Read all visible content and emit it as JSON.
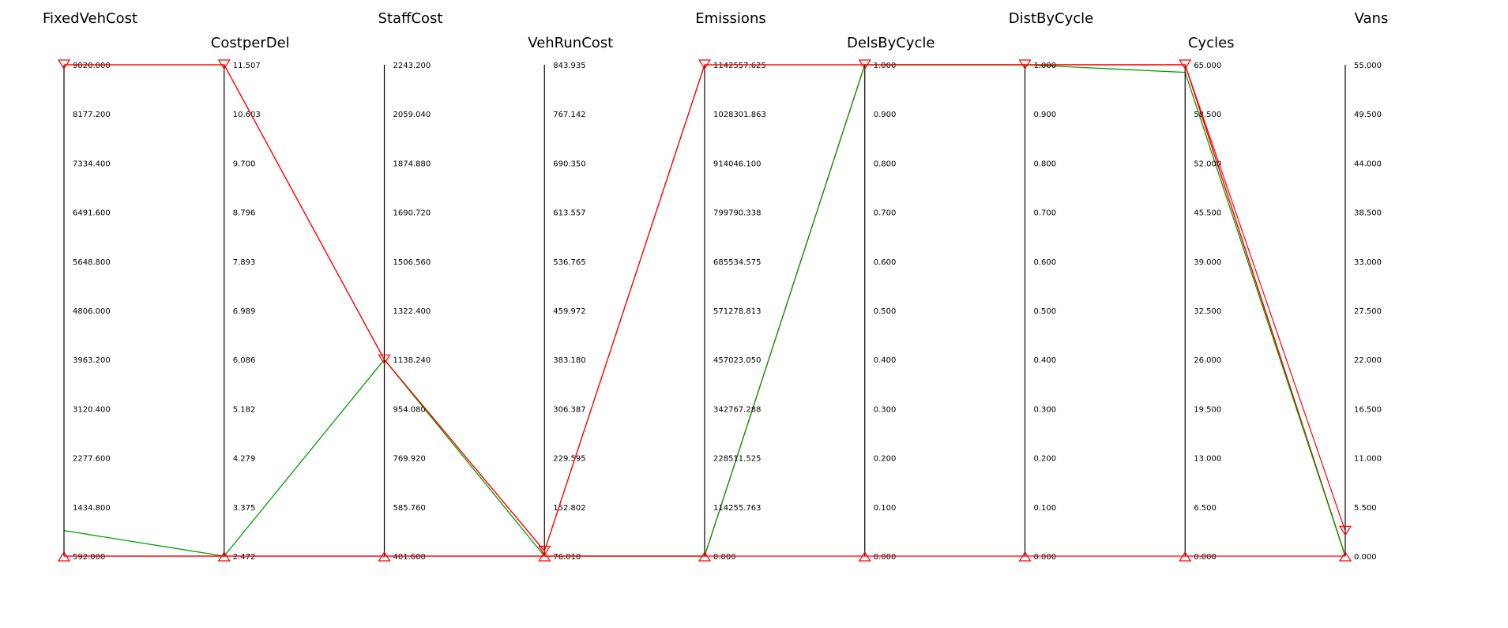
{
  "chart_data": {
    "type": "parallel-coordinates",
    "axes": [
      {
        "name": "FixedVehCost",
        "min": 592.0,
        "max": 9020.0,
        "ticks": [
          "592.000",
          "1434.800",
          "2277.600",
          "3120.400",
          "3963.200",
          "4806.000",
          "5648.800",
          "6491.600",
          "7334.400",
          "8177.200",
          "9020.000"
        ]
      },
      {
        "name": "CostperDel",
        "min": 2.472,
        "max": 11.507,
        "ticks": [
          "2.472",
          "3.375",
          "4.279",
          "5.182",
          "6.086",
          "6.989",
          "7.893",
          "8.796",
          "9.700",
          "10.603",
          "11.507"
        ]
      },
      {
        "name": "StaffCost",
        "min": 401.6,
        "max": 2243.2,
        "ticks": [
          "401.600",
          "585.760",
          "769.920",
          "954.080",
          "1138.240",
          "1322.400",
          "1506.560",
          "1690.720",
          "1874.880",
          "2059.040",
          "2243.200"
        ]
      },
      {
        "name": "VehRunCost",
        "min": 76.01,
        "max": 843.935,
        "ticks": [
          "76.010",
          "152.802",
          "229.595",
          "306.387",
          "383.180",
          "459.972",
          "536.765",
          "613.557",
          "690.350",
          "767.142",
          "843.935"
        ]
      },
      {
        "name": "Emissions",
        "min": 0.0,
        "max": 1142557.625,
        "ticks": [
          "0.000",
          "114255.763",
          "228511.525",
          "342767.288",
          "457023.050",
          "571278.813",
          "685534.575",
          "799790.338",
          "914046.100",
          "1028301.863",
          "1142557.625"
        ]
      },
      {
        "name": "DelsByCycle",
        "min": 0.0,
        "max": 1.0,
        "ticks": [
          "0.000",
          "0.100",
          "0.200",
          "0.300",
          "0.400",
          "0.500",
          "0.600",
          "0.700",
          "0.800",
          "0.900",
          "1.000"
        ]
      },
      {
        "name": "DistByCycle",
        "min": 0.0,
        "max": 1.0,
        "ticks": [
          "0.000",
          "0.100",
          "0.200",
          "0.300",
          "0.400",
          "0.500",
          "0.600",
          "0.700",
          "0.800",
          "0.900",
          "1.000"
        ]
      },
      {
        "name": "Cycles",
        "min": 0.0,
        "max": 65.0,
        "ticks": [
          "0.000",
          "6.500",
          "13.000",
          "19.500",
          "26.000",
          "32.500",
          "39.000",
          "45.500",
          "52.000",
          "58.500",
          "65.000"
        ]
      },
      {
        "name": "Vans",
        "min": 0.0,
        "max": 55.0,
        "ticks": [
          "0.000",
          "5.500",
          "11.000",
          "16.500",
          "22.000",
          "27.500",
          "33.000",
          "38.500",
          "44.000",
          "49.500",
          "55.000"
        ]
      }
    ],
    "series": [
      {
        "color": "#ff0000",
        "values": [
          9020.0,
          11.507,
          1138.24,
          84.0,
          1142557.625,
          1.0,
          1.0,
          65.0,
          0.0
        ]
      },
      {
        "color": "#ff0000",
        "values": [
          592.0,
          2.472,
          401.6,
          76.01,
          0.0,
          1.0,
          1.0,
          65.0,
          0.0
        ]
      },
      {
        "color": "#00a000",
        "values": [
          1030.0,
          2.472,
          1138.24,
          76.01,
          0.0,
          1.0,
          1.0,
          64.0,
          0.0
        ]
      }
    ],
    "filter_handles": [
      {
        "axis": "FixedVehCost",
        "top": 9020.0,
        "bottom": 592.0
      },
      {
        "axis": "CostperDel",
        "top": 11.507,
        "bottom": 2.472
      },
      {
        "axis": "StaffCost",
        "top": 1138.24,
        "bottom": 401.6
      },
      {
        "axis": "VehRunCost",
        "top": 84.0,
        "bottom": 76.01
      },
      {
        "axis": "Emissions",
        "top": 1142557.625,
        "bottom": 0.0
      },
      {
        "axis": "DelsByCycle",
        "top": 1.0,
        "bottom": 0.0
      },
      {
        "axis": "DistByCycle",
        "top": 1.0,
        "bottom": 0.0
      },
      {
        "axis": "Cycles",
        "top": 65.0,
        "bottom": 0.0
      },
      {
        "axis": "Vans",
        "top": 2.8,
        "bottom": 0.0
      }
    ],
    "grid": false,
    "legend": "none"
  }
}
